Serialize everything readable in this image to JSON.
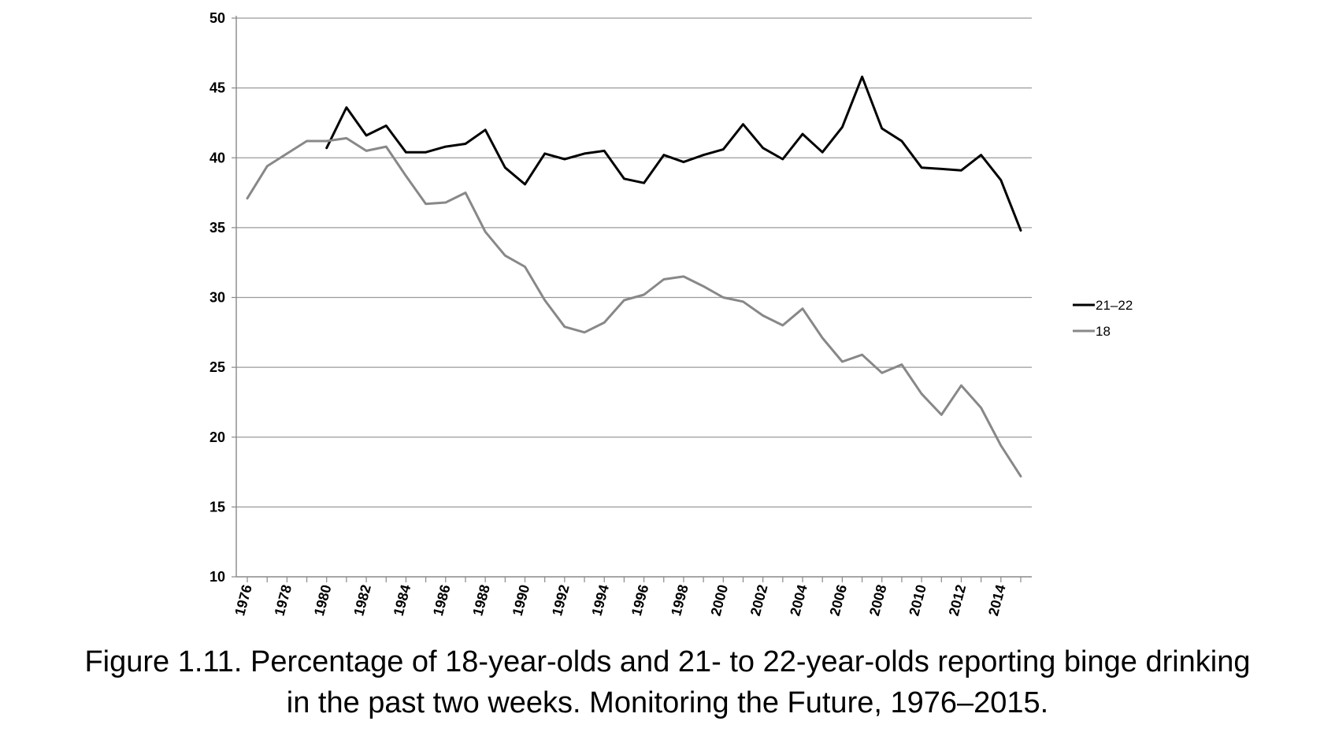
{
  "caption": {
    "line1": "Figure 1.11. Percentage of 18-year-olds and 21- to 22-year-olds reporting binge drinking",
    "line2": "in the past two weeks. Monitoring the Future, 1976–2015."
  },
  "chart_data": {
    "type": "line",
    "title": "",
    "xlabel": "",
    "ylabel": "",
    "ylim": [
      10,
      50
    ],
    "yticks": [
      "10",
      "15",
      "20",
      "25",
      "30",
      "35",
      "40",
      "45",
      "50"
    ],
    "xlim": [
      1976,
      2015
    ],
    "xticks": [
      "1976",
      "1978",
      "1980",
      "1982",
      "1984",
      "1986",
      "1988",
      "1990",
      "1992",
      "1994",
      "1996",
      "1998",
      "2000",
      "2002",
      "2004",
      "2006",
      "2008",
      "2010",
      "2012",
      "2014"
    ],
    "grid": "horizontal",
    "legend_position": "right",
    "series": [
      {
        "name": "21–22",
        "color": "#000000",
        "x": [
          1980,
          1981,
          1982,
          1983,
          1984,
          1985,
          1986,
          1987,
          1988,
          1989,
          1990,
          1991,
          1992,
          1993,
          1994,
          1995,
          1996,
          1997,
          1998,
          1999,
          2000,
          2001,
          2002,
          2003,
          2004,
          2005,
          2006,
          2007,
          2008,
          2009,
          2010,
          2011,
          2012,
          2013,
          2014,
          2015
        ],
        "values": [
          40.7,
          43.6,
          41.6,
          42.3,
          40.4,
          40.4,
          40.8,
          41.0,
          42.0,
          39.3,
          38.1,
          40.3,
          39.9,
          40.3,
          40.5,
          38.5,
          38.2,
          40.2,
          39.7,
          40.2,
          40.6,
          42.4,
          40.7,
          39.9,
          41.7,
          40.4,
          42.2,
          45.8,
          42.1,
          41.2,
          39.3,
          39.2,
          39.1,
          40.2,
          38.4,
          34.8
        ]
      },
      {
        "name": "18",
        "color": "#888888",
        "x": [
          1976,
          1977,
          1978,
          1979,
          1980,
          1981,
          1982,
          1983,
          1984,
          1985,
          1986,
          1987,
          1988,
          1989,
          1990,
          1991,
          1992,
          1993,
          1994,
          1995,
          1996,
          1997,
          1998,
          1999,
          2000,
          2001,
          2002,
          2003,
          2004,
          2005,
          2006,
          2007,
          2008,
          2009,
          2010,
          2011,
          2012,
          2013,
          2014,
          2015
        ],
        "values": [
          37.1,
          39.4,
          40.3,
          41.2,
          41.2,
          41.4,
          40.5,
          40.8,
          38.7,
          36.7,
          36.8,
          37.5,
          34.7,
          33.0,
          32.2,
          29.8,
          27.9,
          27.5,
          28.2,
          29.8,
          30.2,
          31.3,
          31.5,
          30.8,
          30.0,
          29.7,
          28.7,
          28.0,
          29.2,
          27.1,
          25.4,
          25.9,
          24.6,
          25.2,
          23.1,
          21.6,
          23.7,
          22.1,
          19.4,
          17.2
        ]
      }
    ]
  }
}
